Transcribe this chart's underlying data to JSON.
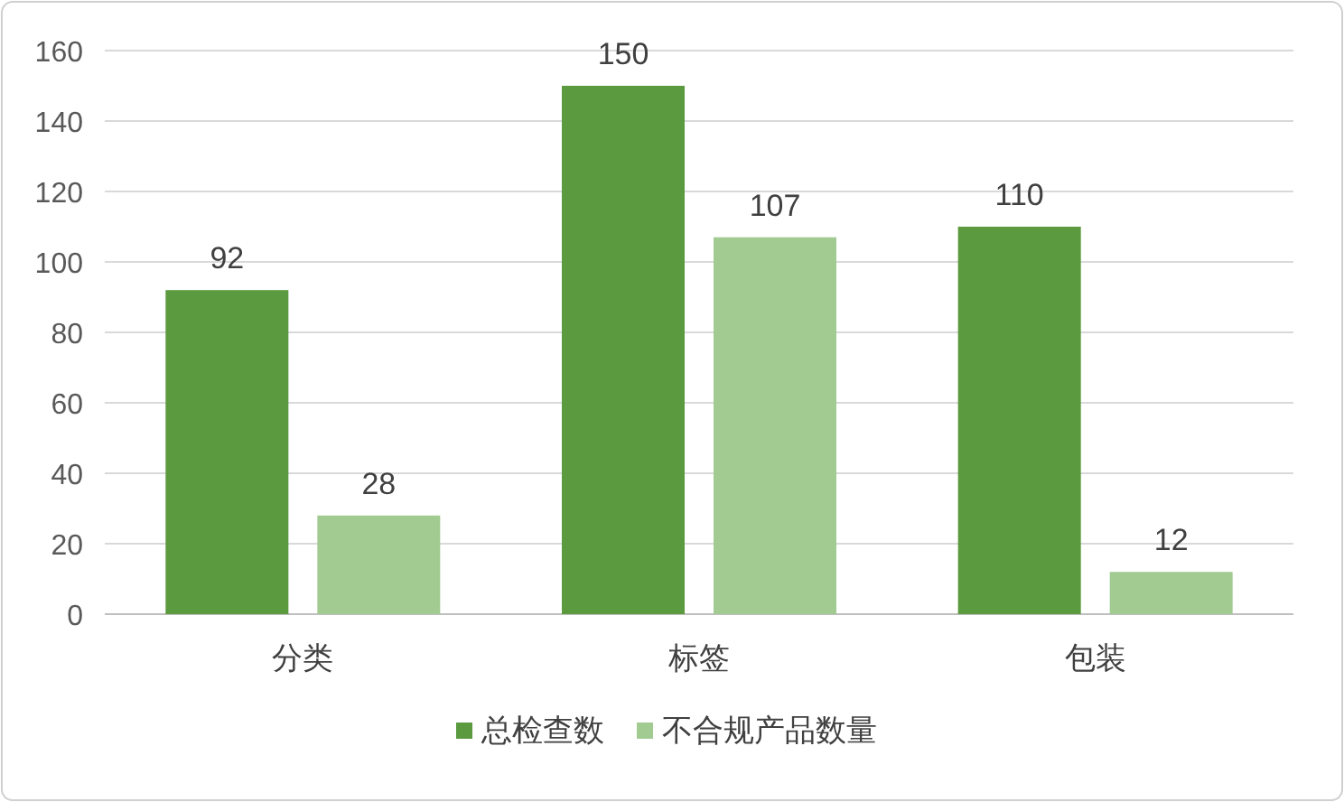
{
  "chart_data": {
    "type": "bar",
    "categories": [
      "分类",
      "标签",
      "包装"
    ],
    "series": [
      {
        "name": "总检查数",
        "color": "#5b9a3e",
        "values": [
          92,
          150,
          110
        ]
      },
      {
        "name": "不合规产品数量",
        "color": "#a2cb91",
        "values": [
          28,
          107,
          12
        ]
      }
    ],
    "ylim": [
      0,
      160
    ],
    "yticks": [
      0,
      20,
      40,
      60,
      80,
      100,
      120,
      140,
      160
    ],
    "grid": "y",
    "legend": "bottom",
    "data_labels": true
  }
}
